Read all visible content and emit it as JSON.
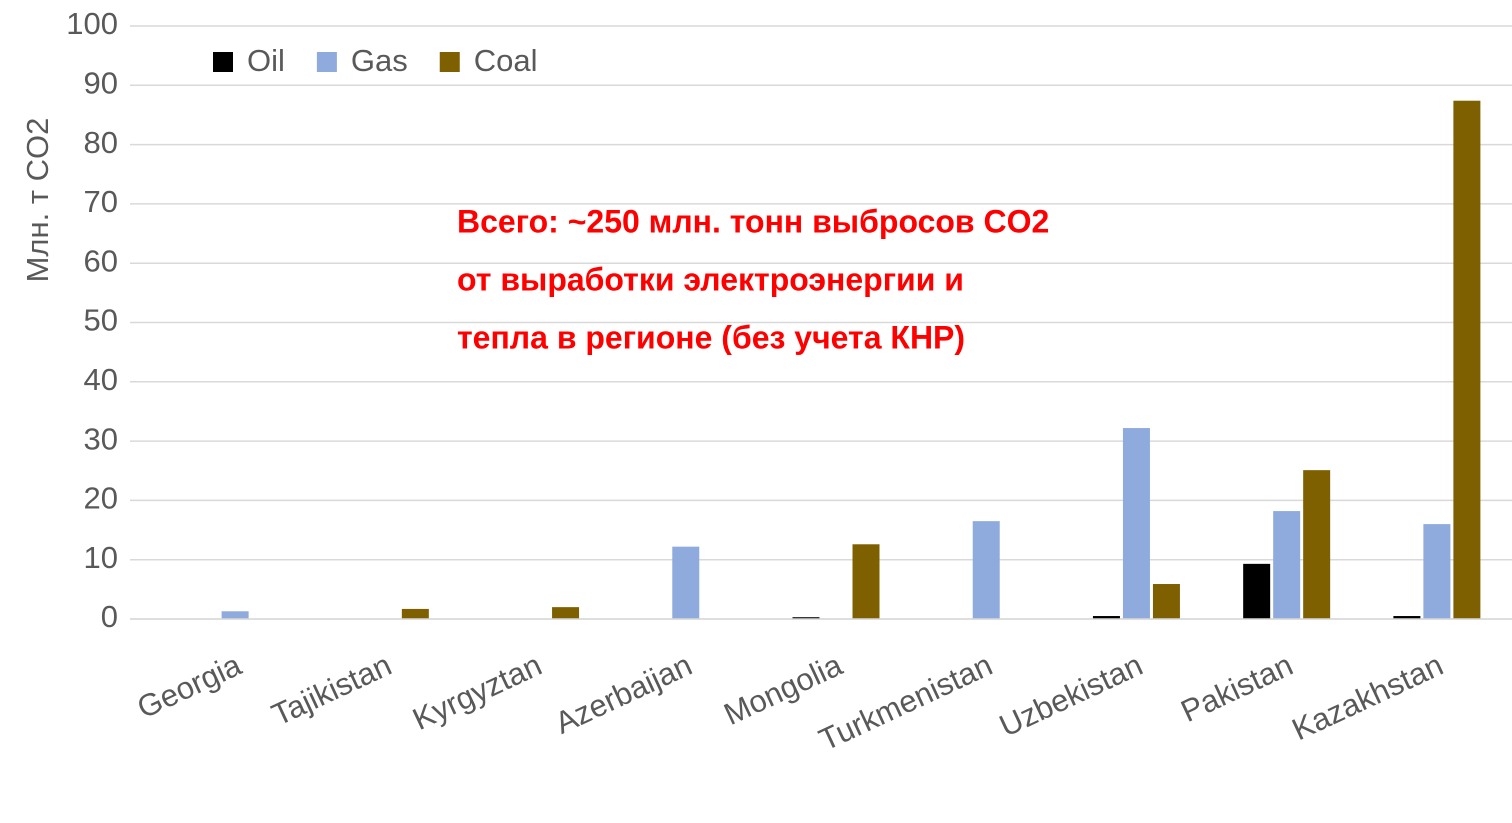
{
  "chart_data": {
    "type": "bar",
    "y_label": "Млн. т CO2",
    "annotation": [
      "Всего: ~250 млн. тонн выбросов CO2",
      "от выработки электроэнергии и",
      "тепла в регионе (без учета КНР)"
    ],
    "categories": [
      "Georgia",
      "Tajikistan",
      "Kyrgyztan",
      "Azerbaijan",
      "Mongolia",
      "Turkmenistan",
      "Uzbekistan",
      "Pakistan",
      "Kazakhstan"
    ],
    "series": [
      {
        "name": "Oil",
        "color": "#000000",
        "values": [
          0,
          0,
          0,
          0,
          0.3,
          0,
          0.5,
          9.3,
          0.5
        ]
      },
      {
        "name": "Gas",
        "color": "#8faadc",
        "values": [
          1.3,
          0,
          0,
          12.2,
          0,
          16.5,
          32.2,
          18.2,
          16.0
        ]
      },
      {
        "name": "Coal",
        "color": "#7f6000",
        "values": [
          0,
          1.7,
          2.0,
          0,
          12.6,
          0,
          5.9,
          25.1,
          87.4
        ]
      }
    ],
    "ylim": [
      0,
      100
    ],
    "yticks": [
      0,
      10,
      20,
      30,
      40,
      50,
      60,
      70,
      80,
      90,
      100
    ],
    "grid": true,
    "legend": "top-left"
  }
}
